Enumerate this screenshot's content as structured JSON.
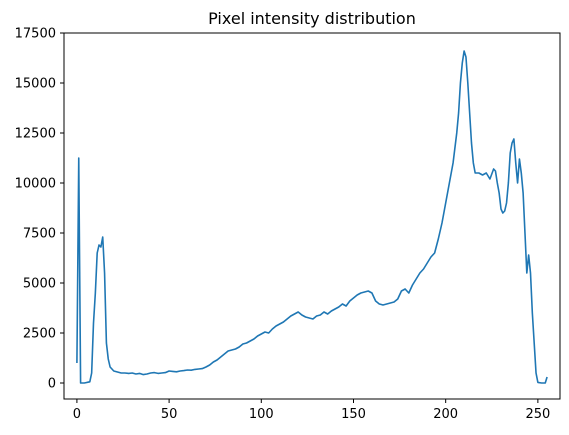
{
  "chart_data": {
    "type": "line",
    "title": "Pixel intensity distribution",
    "xlabel": "",
    "ylabel": "",
    "xlim": [
      -7,
      262
    ],
    "ylim": [
      -800,
      17500
    ],
    "x_ticks": [
      0,
      50,
      100,
      150,
      200,
      250
    ],
    "y_ticks": [
      0,
      2500,
      5000,
      7500,
      10000,
      12500,
      15000,
      17500
    ],
    "grid": false,
    "line_color": "#1f77b4",
    "series": [
      {
        "points": [
          [
            0,
            1000
          ],
          [
            1,
            11250
          ],
          [
            2,
            0
          ],
          [
            3,
            0
          ],
          [
            4,
            0
          ],
          [
            5,
            20
          ],
          [
            6,
            40
          ],
          [
            7,
            60
          ],
          [
            8,
            500
          ],
          [
            9,
            3000
          ],
          [
            10,
            4500
          ],
          [
            11,
            6500
          ],
          [
            12,
            6900
          ],
          [
            13,
            6800
          ],
          [
            14,
            7300
          ],
          [
            15,
            5500
          ],
          [
            16,
            2000
          ],
          [
            17,
            1200
          ],
          [
            18,
            800
          ],
          [
            19,
            700
          ],
          [
            20,
            600
          ],
          [
            22,
            550
          ],
          [
            24,
            500
          ],
          [
            26,
            500
          ],
          [
            28,
            480
          ],
          [
            30,
            500
          ],
          [
            32,
            450
          ],
          [
            34,
            480
          ],
          [
            36,
            420
          ],
          [
            38,
            450
          ],
          [
            40,
            500
          ],
          [
            42,
            520
          ],
          [
            44,
            480
          ],
          [
            46,
            500
          ],
          [
            48,
            520
          ],
          [
            50,
            600
          ],
          [
            52,
            580
          ],
          [
            54,
            560
          ],
          [
            56,
            600
          ],
          [
            58,
            620
          ],
          [
            60,
            650
          ],
          [
            62,
            640
          ],
          [
            64,
            680
          ],
          [
            66,
            700
          ],
          [
            68,
            720
          ],
          [
            70,
            800
          ],
          [
            72,
            900
          ],
          [
            74,
            1050
          ],
          [
            76,
            1150
          ],
          [
            78,
            1300
          ],
          [
            80,
            1450
          ],
          [
            82,
            1600
          ],
          [
            84,
            1650
          ],
          [
            86,
            1700
          ],
          [
            88,
            1800
          ],
          [
            90,
            1950
          ],
          [
            92,
            2000
          ],
          [
            94,
            2100
          ],
          [
            96,
            2200
          ],
          [
            98,
            2350
          ],
          [
            100,
            2450
          ],
          [
            102,
            2550
          ],
          [
            104,
            2500
          ],
          [
            106,
            2700
          ],
          [
            108,
            2850
          ],
          [
            110,
            2950
          ],
          [
            112,
            3050
          ],
          [
            114,
            3200
          ],
          [
            116,
            3350
          ],
          [
            118,
            3450
          ],
          [
            120,
            3550
          ],
          [
            122,
            3400
          ],
          [
            124,
            3300
          ],
          [
            126,
            3250
          ],
          [
            128,
            3200
          ],
          [
            130,
            3350
          ],
          [
            132,
            3400
          ],
          [
            134,
            3550
          ],
          [
            136,
            3450
          ],
          [
            138,
            3600
          ],
          [
            140,
            3700
          ],
          [
            142,
            3800
          ],
          [
            144,
            3950
          ],
          [
            146,
            3850
          ],
          [
            148,
            4100
          ],
          [
            150,
            4250
          ],
          [
            152,
            4400
          ],
          [
            154,
            4500
          ],
          [
            156,
            4550
          ],
          [
            158,
            4600
          ],
          [
            160,
            4500
          ],
          [
            162,
            4100
          ],
          [
            164,
            3950
          ],
          [
            166,
            3900
          ],
          [
            168,
            3950
          ],
          [
            170,
            4000
          ],
          [
            172,
            4050
          ],
          [
            174,
            4200
          ],
          [
            176,
            4600
          ],
          [
            178,
            4700
          ],
          [
            180,
            4500
          ],
          [
            182,
            4900
          ],
          [
            184,
            5200
          ],
          [
            186,
            5500
          ],
          [
            188,
            5700
          ],
          [
            190,
            6000
          ],
          [
            192,
            6300
          ],
          [
            194,
            6500
          ],
          [
            196,
            7200
          ],
          [
            198,
            8000
          ],
          [
            200,
            9000
          ],
          [
            202,
            10000
          ],
          [
            204,
            11000
          ],
          [
            206,
            12500
          ],
          [
            207,
            13500
          ],
          [
            208,
            15000
          ],
          [
            209,
            16000
          ],
          [
            210,
            16600
          ],
          [
            211,
            16300
          ],
          [
            212,
            15000
          ],
          [
            213,
            13500
          ],
          [
            214,
            12000
          ],
          [
            215,
            11000
          ],
          [
            216,
            10500
          ],
          [
            218,
            10500
          ],
          [
            220,
            10400
          ],
          [
            222,
            10500
          ],
          [
            224,
            10200
          ],
          [
            226,
            10700
          ],
          [
            227,
            10600
          ],
          [
            228,
            10000
          ],
          [
            229,
            9500
          ],
          [
            230,
            8700
          ],
          [
            231,
            8500
          ],
          [
            232,
            8600
          ],
          [
            233,
            9000
          ],
          [
            234,
            10000
          ],
          [
            235,
            11500
          ],
          [
            236,
            12000
          ],
          [
            237,
            12200
          ],
          [
            238,
            11000
          ],
          [
            239,
            10000
          ],
          [
            240,
            11200
          ],
          [
            241,
            10500
          ],
          [
            242,
            9500
          ],
          [
            243,
            7500
          ],
          [
            244,
            5500
          ],
          [
            245,
            6400
          ],
          [
            246,
            5500
          ],
          [
            247,
            3500
          ],
          [
            248,
            2000
          ],
          [
            249,
            500
          ],
          [
            250,
            30
          ],
          [
            252,
            0
          ],
          [
            254,
            0
          ],
          [
            255,
            300
          ]
        ]
      }
    ]
  }
}
